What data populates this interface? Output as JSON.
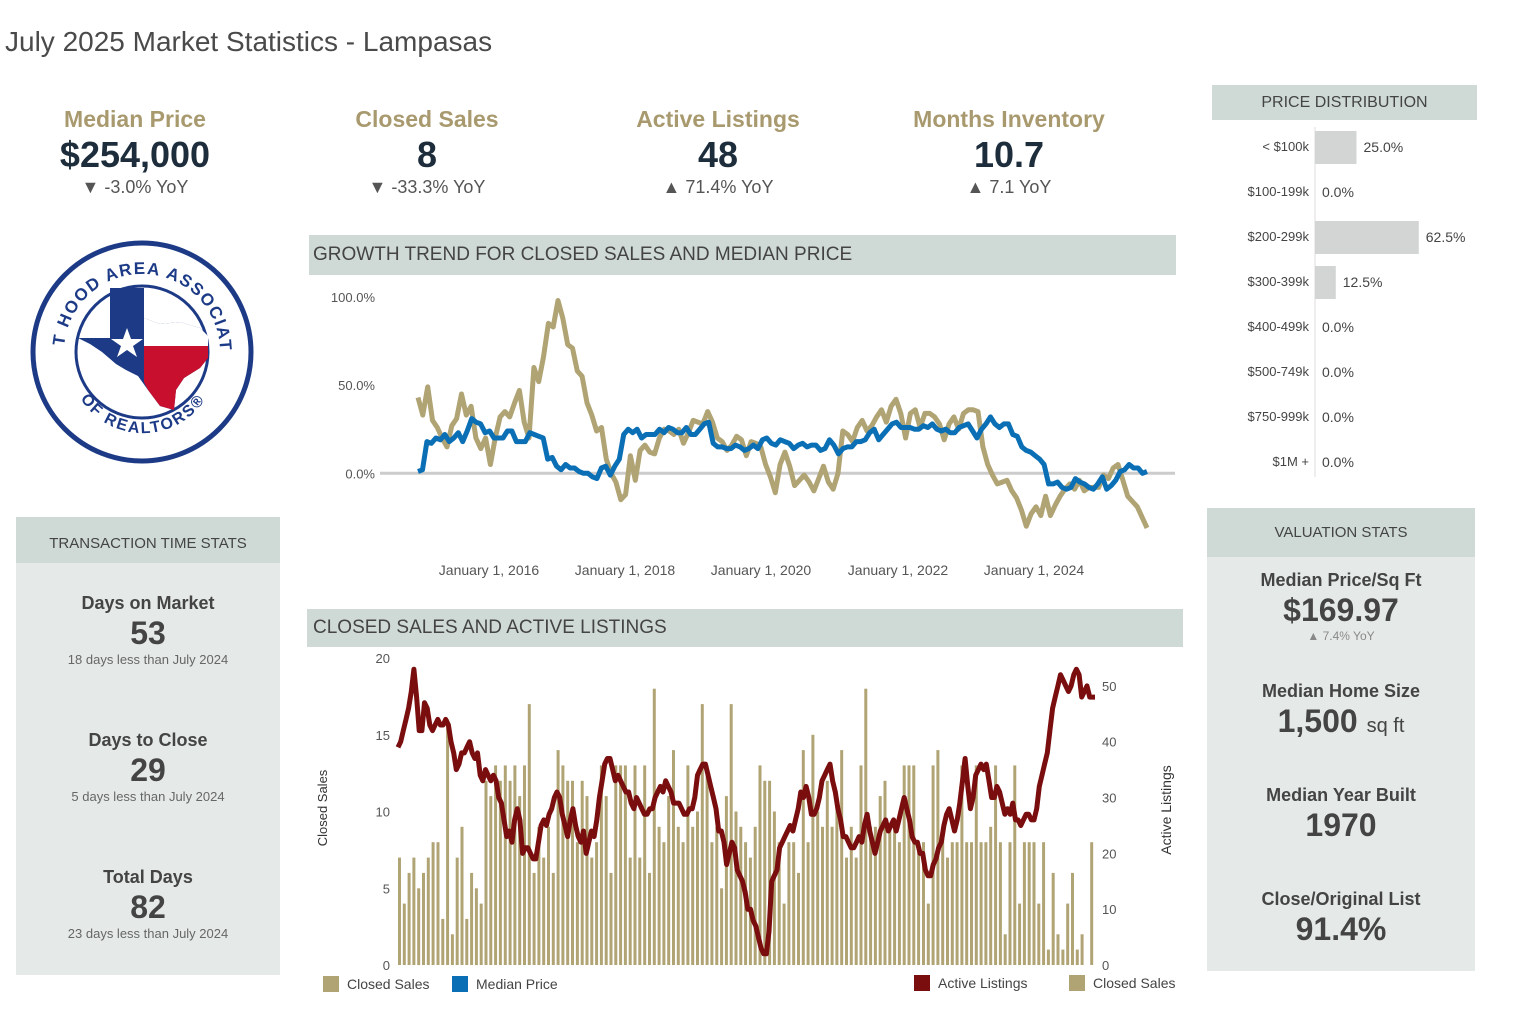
{
  "page_title": "July 2025 Market Statistics - Lampasas",
  "colors": {
    "gold": "#a89a6e",
    "navy": "#1e2d3b",
    "blue": "#0a6fb5",
    "maroon": "#7a0d0d",
    "bar_gold": "#b0a374",
    "panel": "#e5eae8",
    "header": "#cfdad6",
    "pd_bar": "#d3d5d5"
  },
  "kpis": [
    {
      "label": "Median Price",
      "value": "$254,000",
      "change": "▼ -3.0% YoY"
    },
    {
      "label": "Closed Sales",
      "value": "8",
      "change": "▼ -33.3% YoY"
    },
    {
      "label": "Active Listings",
      "value": "48",
      "change": "▲ 71.4% YoY"
    },
    {
      "label": "Months Inventory",
      "value": "10.7",
      "change": "▲ 7.1 YoY"
    }
  ],
  "logo": {
    "text_top": "FORT HOOD AREA ASSOCIATION",
    "text_bottom": "OF REALTORS®"
  },
  "transaction": {
    "header": "TRANSACTION TIME STATS",
    "stats": [
      {
        "label": "Days on Market",
        "value": "53",
        "note": "18 days less than July 2024"
      },
      {
        "label": "Days to Close",
        "value": "29",
        "note": "5 days less than July 2024"
      },
      {
        "label": "Total Days",
        "value": "82",
        "note": "23 days less than July 2024"
      }
    ]
  },
  "valuation": {
    "header": "VALUATION STATS",
    "stats": [
      {
        "label": "Median Price/Sq Ft",
        "value": "$169.97",
        "note": "▲ 7.4% YoY"
      },
      {
        "label": "Median Home Size",
        "value": "1,500",
        "unit": "sq ft"
      },
      {
        "label": "Median Year Built",
        "value": "1970"
      },
      {
        "label": "Close/Original List",
        "value": "91.4%"
      }
    ]
  },
  "chart_data": [
    {
      "type": "line",
      "title": "GROWTH TREND FOR CLOSED SALES AND MEDIAN PRICE",
      "x_ticks": [
        "January 1, 2016",
        "January 1, 2018",
        "January 1, 2020",
        "January 1, 2022",
        "January 1, 2024"
      ],
      "y_ticks": [
        "100.0%",
        "50.0%",
        "0.0%"
      ],
      "ylim": [
        -35,
        100
      ],
      "series": [
        {
          "name": "Closed Sales",
          "color": "#b0a374",
          "values": [
            43,
            33,
            49,
            30,
            26,
            20,
            15,
            27,
            31,
            45,
            33,
            38,
            20,
            14,
            20,
            5,
            20,
            32,
            35,
            32,
            40,
            47,
            29,
            20,
            60,
            52,
            66,
            85,
            83,
            98,
            88,
            73,
            71,
            58,
            55,
            40,
            33,
            24,
            26,
            8,
            0,
            -5,
            -15,
            -12,
            10,
            -4,
            13,
            16,
            12,
            11,
            20,
            25,
            24,
            22,
            25,
            17,
            23,
            30,
            29,
            28,
            35,
            29,
            20,
            18,
            13,
            16,
            21,
            19,
            10,
            18,
            17,
            15,
            5,
            -2,
            -11,
            5,
            12,
            4,
            -7,
            -4,
            -1,
            -5,
            -10,
            -3,
            4,
            -5,
            -9,
            0,
            24,
            22,
            18,
            26,
            30,
            24,
            27,
            32,
            36,
            29,
            38,
            42,
            34,
            20,
            34,
            36,
            26,
            34,
            34,
            32,
            28,
            19,
            28,
            32,
            25,
            34,
            36,
            36,
            35,
            15,
            5,
            -1,
            -6,
            -5,
            -4,
            -10,
            -14,
            -21,
            -30,
            -23,
            -19,
            -24,
            -13,
            -24,
            -18,
            -13,
            -9,
            -6,
            -9,
            -4,
            -10,
            -8,
            -8,
            -8,
            -1,
            -3,
            3,
            5,
            -4,
            -13,
            -16,
            -19,
            -25,
            -31
          ]
        },
        {
          "name": "Median Price",
          "color": "#0a6fb5",
          "values": [
            1,
            2,
            18,
            17,
            20,
            19,
            22,
            18,
            20,
            23,
            18,
            24,
            31,
            29,
            28,
            23,
            24,
            20,
            20,
            20,
            24,
            24,
            18,
            18,
            18,
            23,
            22,
            21,
            20,
            8,
            9,
            4,
            2,
            5,
            3,
            3,
            1,
            0,
            0,
            -2,
            -3,
            3,
            4,
            -1,
            4,
            8,
            22,
            25,
            23,
            25,
            20,
            22,
            22,
            22,
            25,
            23,
            26,
            25,
            23,
            23,
            26,
            22,
            22,
            25,
            28,
            29,
            17,
            15,
            15,
            14,
            14,
            16,
            15,
            13,
            14,
            16,
            14,
            19,
            20,
            17,
            16,
            19,
            18,
            17,
            14,
            16,
            17,
            15,
            16,
            16,
            13,
            14,
            19,
            16,
            11,
            14,
            15,
            15,
            18,
            18,
            19,
            23,
            25,
            19,
            22,
            25,
            28,
            29,
            26,
            26,
            26,
            25,
            25,
            27,
            26,
            28,
            25,
            24,
            25,
            23,
            23,
            26,
            27,
            28,
            24,
            20,
            25,
            28,
            32,
            28,
            26,
            28,
            28,
            22,
            21,
            15,
            13,
            12,
            10,
            8,
            5,
            -6,
            -6,
            -5,
            -8,
            -9,
            -8,
            -3,
            -5,
            -6,
            -8,
            -9,
            -6,
            -2,
            -9,
            -7,
            -4,
            1,
            2,
            5,
            3,
            3,
            0,
            1
          ]
        }
      ]
    },
    {
      "type": "bar",
      "title": "CLOSED SALES AND ACTIVE LISTINGS",
      "y_left_label": "Closed Sales",
      "y_right_label": "Active Listings",
      "y_left_ticks": [
        20,
        15,
        10,
        5,
        0
      ],
      "y_right_ticks": [
        50,
        40,
        30,
        20,
        10,
        0
      ],
      "ylim_left": [
        0,
        20
      ],
      "ylim_right": [
        0,
        55
      ],
      "series": [
        {
          "name": "Closed Sales",
          "color": "#b0a374",
          "values": [
            7,
            4,
            6,
            7,
            5,
            6,
            7,
            8,
            8,
            3,
            16,
            2,
            7,
            9,
            3,
            6,
            5,
            4,
            12,
            11,
            13,
            12,
            13,
            12,
            13,
            11,
            13,
            17,
            6,
            9,
            7,
            9,
            6,
            14,
            13,
            12,
            12,
            8,
            12,
            11,
            7,
            8,
            13,
            11,
            6,
            13,
            13,
            13,
            7,
            13,
            7,
            13,
            6,
            18,
            9,
            8,
            11,
            14,
            9,
            8,
            13,
            9,
            10,
            17,
            13,
            8,
            9,
            5,
            11,
            17,
            10,
            9,
            8,
            7,
            9,
            13,
            12,
            12,
            10,
            8,
            4,
            8,
            8,
            6,
            14,
            8,
            15,
            10,
            9,
            12,
            9,
            11,
            14,
            7,
            9,
            7,
            13,
            18,
            9,
            9,
            11,
            12,
            9,
            9,
            8,
            13,
            13,
            13,
            8,
            8,
            4,
            13,
            14,
            9,
            7,
            8,
            8,
            13,
            8,
            8,
            13,
            8,
            8,
            9,
            13,
            8,
            2,
            8,
            13,
            4,
            8,
            8,
            8,
            4,
            8,
            1,
            6,
            2,
            1,
            4,
            6,
            1,
            2,
            0,
            8
          ]
        },
        {
          "name": "Active Listings",
          "color": "#7a0d0d",
          "values": [
            39,
            40,
            42,
            44,
            46,
            49,
            53,
            48,
            42,
            42,
            47,
            46,
            43,
            42,
            43,
            44,
            43,
            43,
            44,
            43,
            40,
            38,
            35,
            36,
            38,
            38,
            39,
            40,
            38,
            37,
            38,
            34,
            33,
            35,
            34,
            33,
            34,
            33,
            30,
            29,
            26,
            23,
            24,
            22,
            26,
            28,
            26,
            20,
            21,
            21,
            20,
            19,
            19,
            22,
            25,
            26,
            25,
            27,
            28,
            30,
            31,
            30,
            27,
            25,
            23,
            26,
            28,
            25,
            23,
            22,
            24,
            20,
            22,
            24,
            23,
            26,
            30,
            33,
            36,
            37,
            37,
            35,
            33,
            34,
            33,
            32,
            31,
            31,
            29,
            28,
            30,
            29,
            28,
            27,
            27,
            28,
            28,
            30,
            31,
            32,
            31,
            33,
            32,
            31,
            29,
            29,
            29,
            28,
            27,
            27,
            28,
            28,
            30,
            34,
            35,
            36,
            36,
            34,
            32,
            30,
            28,
            24,
            24,
            22,
            18,
            20,
            22,
            21,
            17,
            16,
            15,
            13,
            10,
            10,
            8,
            7,
            5,
            3,
            2,
            2,
            6,
            15,
            16,
            17,
            21,
            22,
            23,
            24,
            25,
            24,
            26,
            28,
            31,
            30,
            32,
            30,
            27,
            27,
            28,
            30,
            33,
            34,
            35,
            36,
            33,
            31,
            28,
            26,
            23,
            23,
            22,
            21,
            21,
            22,
            23,
            22,
            25,
            27,
            24,
            22,
            20,
            22,
            24,
            25,
            26,
            24,
            25,
            26,
            24,
            26,
            28,
            30,
            28,
            26,
            23,
            22,
            22,
            20,
            20,
            17,
            16,
            16,
            18,
            19,
            21,
            22,
            25,
            27,
            28,
            26,
            24,
            26,
            29,
            33,
            37,
            32,
            28,
            30,
            34,
            35,
            36,
            35,
            36,
            33,
            30,
            30,
            32,
            31,
            29,
            27,
            28,
            27,
            29,
            26,
            26,
            25,
            26,
            27,
            27,
            26,
            26,
            28,
            32,
            34,
            36,
            38,
            42,
            46,
            48,
            50,
            52,
            51,
            50,
            49,
            50,
            52,
            53,
            52,
            48,
            49,
            50,
            48,
            48,
            48
          ]
        }
      ]
    },
    {
      "type": "bar",
      "title": "PRICE DISTRIBUTION",
      "categories": [
        "< $100k",
        "$100-199k",
        "$200-299k",
        "$300-399k",
        "$400-499k",
        "$500-749k",
        "$750-999k",
        "$1M +"
      ],
      "values": [
        25.0,
        0.0,
        62.5,
        12.5,
        0.0,
        0.0,
        0.0,
        0.0
      ],
      "value_labels": [
        "25.0%",
        "0.0%",
        "62.5%",
        "12.5%",
        "0.0%",
        "0.0%",
        "0.0%",
        "0.0%"
      ]
    }
  ],
  "legends": {
    "growth": [
      {
        "name": "Closed Sales",
        "color": "#b0a374"
      },
      {
        "name": "Median Price",
        "color": "#0a6fb5"
      }
    ],
    "sales": [
      {
        "name": "Active Listings",
        "color": "#7a0d0d"
      },
      {
        "name": "Closed Sales",
        "color": "#b0a374"
      }
    ]
  }
}
